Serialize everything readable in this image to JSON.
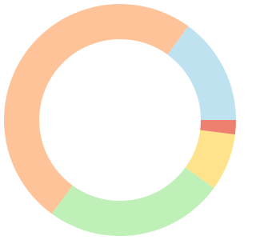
{
  "chart_data": {
    "type": "donut",
    "values": [
      15,
      2,
      8,
      25,
      50
    ],
    "colors": [
      "#bfe2f0",
      "#ee8070",
      "#fee28c",
      "#bef0b8",
      "#fec399"
    ]
  }
}
